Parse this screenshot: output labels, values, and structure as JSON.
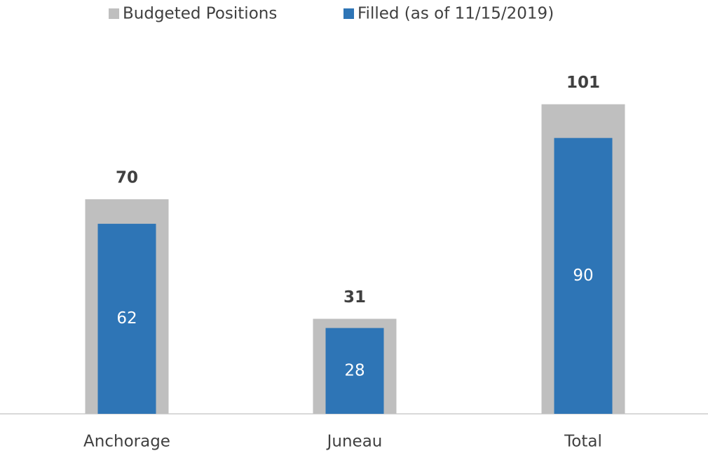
{
  "chart_data": {
    "type": "bar",
    "categories": [
      "Anchorage",
      "Juneau",
      "Total"
    ],
    "series": [
      {
        "name": "Budgeted Positions",
        "color": "#bfbfbf",
        "values": [
          70,
          31,
          101
        ]
      },
      {
        "name": "Filled (as of 11/15/2019)",
        "color": "#2e75b6",
        "values": [
          62,
          28,
          90
        ]
      }
    ]
  }
}
